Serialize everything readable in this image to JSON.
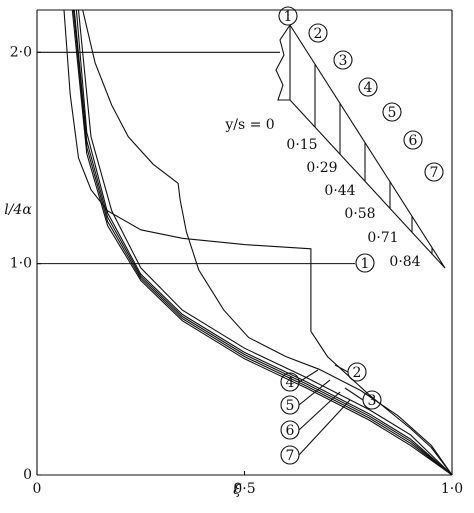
{
  "chart_data": {
    "type": "line",
    "xlabel": "ξ",
    "ylabel": "l/4α",
    "xlim": [
      0,
      1
    ],
    "ylim": [
      0,
      2.2
    ],
    "xticks": [
      {
        "value": 0,
        "label": "0"
      },
      {
        "value": 0.5,
        "label": "0·5"
      },
      {
        "value": 1,
        "label": "1·0"
      }
    ],
    "yticks": [
      {
        "value": 0,
        "label": "0"
      },
      {
        "value": 1,
        "label": "1·0"
      },
      {
        "value": 2,
        "label": "2·0"
      }
    ],
    "ref_lines": [
      1,
      2
    ],
    "series": [
      {
        "name": "1",
        "color": "#111111",
        "x": [
          0.065,
          0.08,
          0.1,
          0.13,
          0.17,
          0.25,
          0.35,
          0.5,
          0.66,
          0.66,
          0.7,
          0.8,
          0.9,
          0.95,
          1.0
        ],
        "values": [
          2.2,
          1.8,
          1.5,
          1.35,
          1.25,
          1.16,
          1.12,
          1.09,
          1.07,
          0.68,
          0.56,
          0.38,
          0.22,
          0.13,
          0
        ]
      },
      {
        "name": "2",
        "color": "#111111",
        "x": [
          0.11,
          0.14,
          0.18,
          0.22,
          0.28,
          0.34,
          0.345,
          0.36,
          0.39,
          0.45,
          0.51,
          0.6,
          0.68,
          0.78,
          0.87,
          0.95,
          1.0
        ],
        "values": [
          2.2,
          1.95,
          1.75,
          1.6,
          1.47,
          1.38,
          1.3,
          1.15,
          0.97,
          0.78,
          0.65,
          0.56,
          0.5,
          0.4,
          0.28,
          0.14,
          0
        ]
      },
      {
        "name": "3",
        "color": "#111111",
        "x": [
          0.1,
          0.13,
          0.18,
          0.25,
          0.35,
          0.5,
          0.65,
          0.8,
          0.9,
          1.0
        ],
        "values": [
          2.2,
          1.6,
          1.25,
          0.98,
          0.78,
          0.6,
          0.46,
          0.31,
          0.19,
          0
        ]
      },
      {
        "name": "4",
        "color": "#111111",
        "x": [
          0.095,
          0.12,
          0.17,
          0.25,
          0.35,
          0.5,
          0.65,
          0.8,
          0.9,
          1.0
        ],
        "values": [
          2.2,
          1.62,
          1.24,
          0.95,
          0.76,
          0.58,
          0.44,
          0.29,
          0.17,
          0
        ]
      },
      {
        "name": "5",
        "color": "#111111",
        "x": [
          0.09,
          0.12,
          0.17,
          0.25,
          0.35,
          0.5,
          0.65,
          0.8,
          0.9,
          1.0
        ],
        "values": [
          2.2,
          1.58,
          1.22,
          0.94,
          0.75,
          0.57,
          0.43,
          0.28,
          0.16,
          0
        ]
      },
      {
        "name": "6",
        "color": "#111111",
        "x": [
          0.088,
          0.12,
          0.17,
          0.25,
          0.35,
          0.5,
          0.65,
          0.8,
          0.9,
          1.0
        ],
        "values": [
          2.2,
          1.55,
          1.2,
          0.93,
          0.74,
          0.56,
          0.42,
          0.27,
          0.15,
          0
        ]
      },
      {
        "name": "7",
        "color": "#111111",
        "x": [
          0.085,
          0.12,
          0.17,
          0.25,
          0.35,
          0.5,
          0.65,
          0.8,
          0.9,
          1.0
        ],
        "values": [
          2.2,
          1.52,
          1.18,
          0.92,
          0.73,
          0.55,
          0.41,
          0.26,
          0.14,
          0
        ]
      }
    ],
    "inset": {
      "sections": [
        "1",
        "2",
        "3",
        "4",
        "5",
        "6",
        "7"
      ],
      "stations": [
        "y/s = 0",
        "0·15",
        "0·29",
        "0·44",
        "0·58",
        "0·71",
        "0·84"
      ]
    }
  }
}
